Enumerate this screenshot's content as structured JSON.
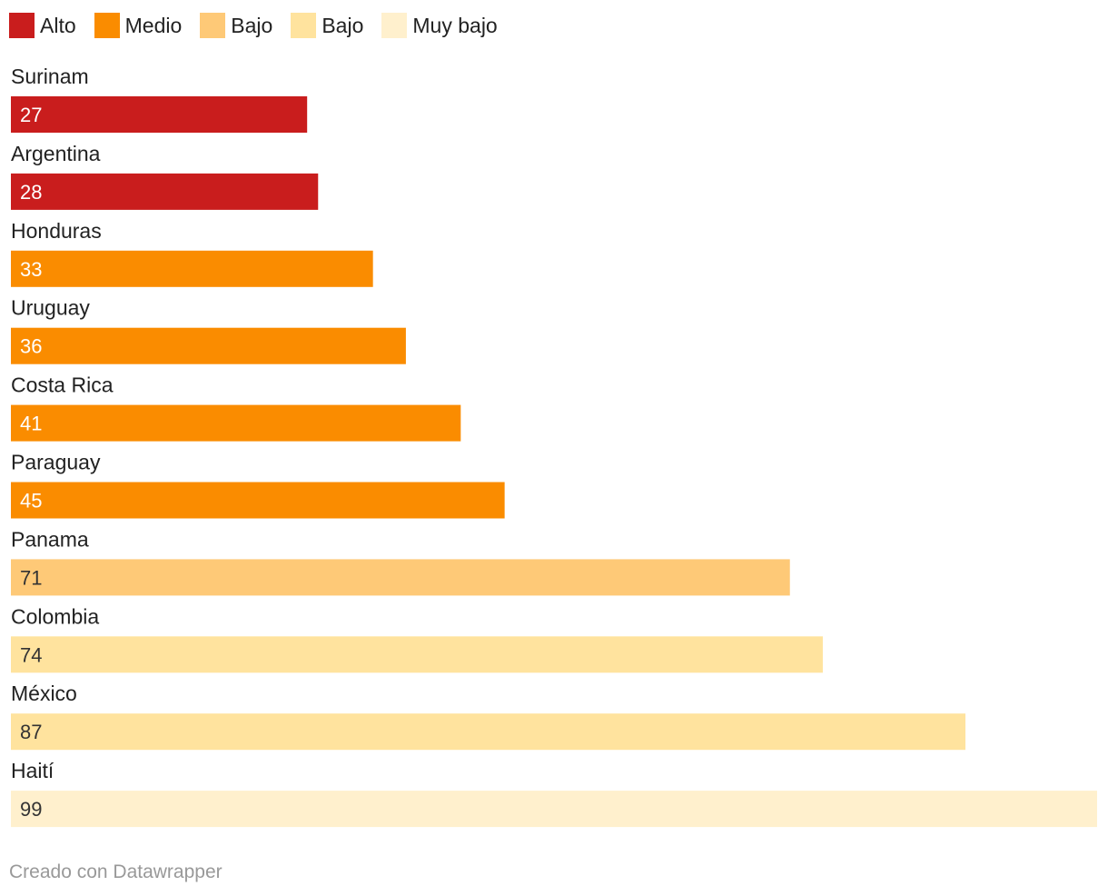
{
  "legend": [
    {
      "label": "Alto",
      "color": "#c91d1d"
    },
    {
      "label": "Medio",
      "color": "#fa8c00"
    },
    {
      "label": "Bajo",
      "color": "#fec977"
    },
    {
      "label": "Bajo",
      "color": "#ffe39e"
    },
    {
      "label": "Muy bajo",
      "color": "#fff0cd"
    }
  ],
  "chart_data": {
    "type": "bar",
    "orientation": "horizontal",
    "categories": [
      "Surinam",
      "Argentina",
      "Honduras",
      "Uruguay",
      "Costa Rica",
      "Paraguay",
      "Panama",
      "Colombia",
      "México",
      "Haití"
    ],
    "values": [
      27,
      28,
      33,
      36,
      41,
      45,
      71,
      74,
      87,
      99
    ],
    "bar_colors": [
      "#c91d1d",
      "#c91d1d",
      "#fa8c00",
      "#fa8c00",
      "#fa8c00",
      "#fa8c00",
      "#fec977",
      "#ffe39e",
      "#ffe39e",
      "#fff0cd"
    ],
    "value_label_colors": [
      "#ffffff",
      "#ffffff",
      "#ffffff",
      "#ffffff",
      "#ffffff",
      "#ffffff",
      "#333333",
      "#333333",
      "#333333",
      "#333333"
    ],
    "xlim": [
      0,
      99
    ],
    "grid": false,
    "legend_position": "top-left",
    "title": "",
    "xlabel": "",
    "ylabel": ""
  },
  "footer": {
    "credit": "Creado con Datawrapper"
  }
}
